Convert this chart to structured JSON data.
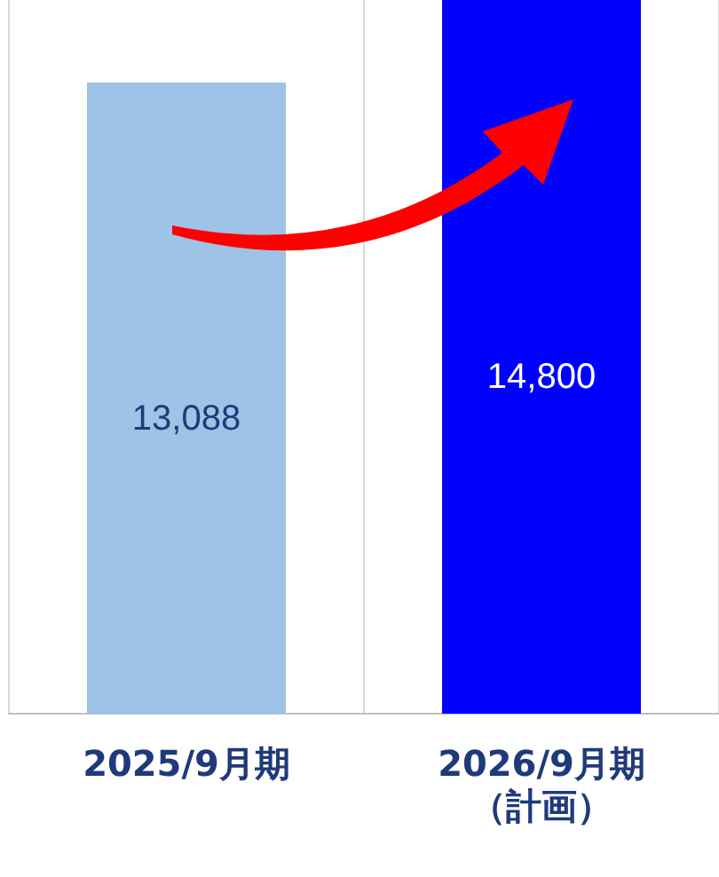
{
  "chart_data": {
    "type": "bar",
    "categories": [
      "2025/9月期",
      "2026/9月期（計画）"
    ],
    "values": [
      13088,
      14800
    ],
    "colors": [
      "#9dc3e6",
      "#0000ff"
    ],
    "value_labels": [
      "13,088",
      "14,800"
    ],
    "grid": "x",
    "legend": false
  }
}
